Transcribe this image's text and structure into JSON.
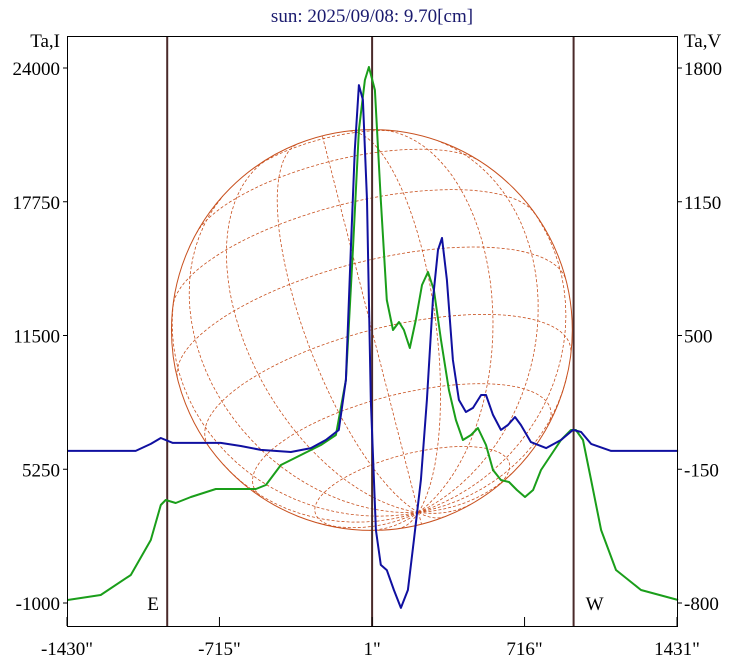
{
  "chart_data": {
    "type": "line",
    "title": "sun: 2025/09/08: 9.70[cm]",
    "left_axis_label": "Ta,I",
    "right_axis_label": "Ta,V",
    "xlim": [
      -1430,
      1431
    ],
    "ylim_left": [
      -1000,
      24000
    ],
    "ylim_right": [
      -800,
      1800
    ],
    "x_ticks": [
      -1430,
      -715,
      1,
      716,
      1431
    ],
    "x_tick_labels": [
      "-1430\"",
      "-715\"",
      "1\"",
      "716\"",
      "1431\""
    ],
    "left_ticks": [
      24000,
      17750,
      11500,
      5250,
      -1000
    ],
    "left_tick_labels": [
      "24000",
      "17750",
      "11500",
      "5250",
      "-1000"
    ],
    "right_ticks": [
      1800,
      1150,
      500,
      -150,
      -800
    ],
    "right_tick_labels": [
      "1800",
      "1150",
      "500",
      "-150",
      "-800"
    ],
    "markers": [
      {
        "x": -960,
        "label": "E"
      },
      {
        "x": 1,
        "label": ""
      },
      {
        "x": 946,
        "label": "W"
      }
    ],
    "solar_radius_arcsec": 940,
    "colors": {
      "I": "#1a9e1a",
      "V": "#1010a0",
      "grid": "#c8501e",
      "marker": "#4a2a2a"
    },
    "series": [
      {
        "name": "I",
        "axis": "left",
        "points": [
          [
            -1427,
            -860
          ],
          [
            -1272,
            -626
          ],
          [
            -1131,
            309
          ],
          [
            -1037,
            1944
          ],
          [
            -990,
            3580
          ],
          [
            -967,
            3813
          ],
          [
            -920,
            3673
          ],
          [
            -849,
            3953
          ],
          [
            -732,
            4327
          ],
          [
            -544,
            4327
          ],
          [
            -497,
            4514
          ],
          [
            -427,
            5449
          ],
          [
            -333,
            5916
          ],
          [
            -239,
            6383
          ],
          [
            -169,
            6850
          ],
          [
            -122,
            9420
          ],
          [
            -89,
            15495
          ],
          [
            -61,
            21103
          ],
          [
            -33,
            23440
          ],
          [
            -14,
            24047
          ],
          [
            14,
            22972
          ],
          [
            42,
            17832
          ],
          [
            70,
            13159
          ],
          [
            99,
            11757
          ],
          [
            127,
            12131
          ],
          [
            150,
            11757
          ],
          [
            178,
            10916
          ],
          [
            206,
            12224
          ],
          [
            235,
            13860
          ],
          [
            263,
            14467
          ],
          [
            291,
            13626
          ],
          [
            324,
            11290
          ],
          [
            361,
            8953
          ],
          [
            394,
            7551
          ],
          [
            427,
            6617
          ],
          [
            465,
            6850
          ],
          [
            497,
            7178
          ],
          [
            535,
            6383
          ],
          [
            568,
            5215
          ],
          [
            605,
            4748
          ],
          [
            643,
            4654
          ],
          [
            680,
            4280
          ],
          [
            718,
            3953
          ],
          [
            756,
            4280
          ],
          [
            793,
            5215
          ],
          [
            840,
            5916
          ],
          [
            887,
            6617
          ],
          [
            934,
            7084
          ],
          [
            957,
            7084
          ],
          [
            990,
            6617
          ],
          [
            1028,
            4748
          ],
          [
            1075,
            2412
          ],
          [
            1145,
            542
          ],
          [
            1262,
            -393
          ],
          [
            1436,
            -860
          ]
        ]
      },
      {
        "name": "V",
        "axis": "right",
        "points": [
          [
            -1427,
            -61
          ],
          [
            -1108,
            -61
          ],
          [
            -1037,
            -27
          ],
          [
            -990,
            2
          ],
          [
            -934,
            -22
          ],
          [
            -709,
            -22
          ],
          [
            -615,
            -37
          ],
          [
            -521,
            -56
          ],
          [
            -380,
            -66
          ],
          [
            -286,
            -47
          ],
          [
            -216,
            -8
          ],
          [
            -155,
            41
          ],
          [
            -122,
            284
          ],
          [
            -99,
            916
          ],
          [
            -80,
            1402
          ],
          [
            -61,
            1717
          ],
          [
            -42,
            1645
          ],
          [
            -23,
            1159
          ],
          [
            -5,
            187
          ],
          [
            19,
            -445
          ],
          [
            42,
            -615
          ],
          [
            70,
            -640
          ],
          [
            103,
            -737
          ],
          [
            136,
            -824
          ],
          [
            169,
            -737
          ],
          [
            197,
            -494
          ],
          [
            230,
            -202
          ],
          [
            258,
            187
          ],
          [
            286,
            673
          ],
          [
            310,
            916
          ],
          [
            329,
            974
          ],
          [
            352,
            770
          ],
          [
            380,
            381
          ],
          [
            408,
            187
          ],
          [
            441,
            128
          ],
          [
            474,
            148
          ],
          [
            512,
            211
          ],
          [
            535,
            211
          ],
          [
            568,
            114
          ],
          [
            605,
            41
          ],
          [
            638,
            65
          ],
          [
            671,
            104
          ],
          [
            699,
            65
          ],
          [
            746,
            -18
          ],
          [
            817,
            -47
          ],
          [
            887,
            -8
          ],
          [
            943,
            41
          ],
          [
            981,
            31
          ],
          [
            1028,
            -27
          ],
          [
            1122,
            -61
          ],
          [
            1436,
            -61
          ]
        ]
      }
    ]
  }
}
